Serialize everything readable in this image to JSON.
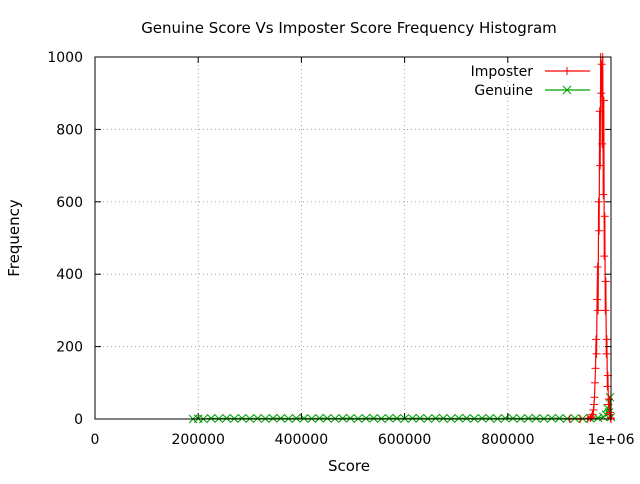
{
  "chart_data": {
    "type": "line",
    "title": "Genuine Score Vs Imposter Score Frequency Histogram",
    "xlabel": "Score",
    "ylabel": "Frequency",
    "xlim": [
      0,
      1000000
    ],
    "ylim": [
      0,
      1000
    ],
    "x_ticks": [
      0,
      200000,
      400000,
      600000,
      800000,
      1000000
    ],
    "x_tick_labels": [
      "0",
      "200000",
      "400000",
      "600000",
      "800000",
      "1e+06"
    ],
    "y_ticks": [
      0,
      200,
      400,
      600,
      800,
      1000
    ],
    "y_tick_labels": [
      "0",
      "200",
      "400",
      "600",
      "800",
      "1000"
    ],
    "grid": true,
    "legend_position": "top-right",
    "series": [
      {
        "name": "Imposter",
        "color": "#ff0000",
        "marker": "plus",
        "points": [
          [
            920000,
            0
          ],
          [
            940000,
            0
          ],
          [
            955000,
            1
          ],
          [
            960000,
            3
          ],
          [
            962000,
            6
          ],
          [
            964000,
            12
          ],
          [
            966000,
            25
          ],
          [
            967000,
            40
          ],
          [
            968000,
            60
          ],
          [
            969000,
            100
          ],
          [
            970000,
            140
          ],
          [
            971000,
            220
          ],
          [
            972000,
            180
          ],
          [
            973000,
            330
          ],
          [
            974000,
            420
          ],
          [
            975000,
            300
          ],
          [
            976000,
            600
          ],
          [
            977000,
            520
          ],
          [
            978000,
            850
          ],
          [
            979000,
            700
          ],
          [
            980000,
            1000
          ],
          [
            981000,
            900
          ],
          [
            982000,
            980
          ],
          [
            983000,
            760
          ],
          [
            984000,
            1000
          ],
          [
            985000,
            620
          ],
          [
            986000,
            880
          ],
          [
            987000,
            450
          ],
          [
            988000,
            560
          ],
          [
            989000,
            300
          ],
          [
            990000,
            380
          ],
          [
            991000,
            180
          ],
          [
            992000,
            220
          ],
          [
            993000,
            90
          ],
          [
            994000,
            120
          ],
          [
            995000,
            40
          ],
          [
            996000,
            55
          ],
          [
            997000,
            12
          ],
          [
            998000,
            18
          ],
          [
            999000,
            3
          ],
          [
            1000000,
            0
          ]
        ]
      },
      {
        "name": "Genuine",
        "color": "#00a000",
        "marker": "cross",
        "points": [
          [
            190000,
            0
          ],
          [
            200000,
            1
          ],
          [
            210000,
            0
          ],
          [
            225000,
            2
          ],
          [
            240000,
            1
          ],
          [
            255000,
            2
          ],
          [
            270000,
            1
          ],
          [
            285000,
            2
          ],
          [
            300000,
            1
          ],
          [
            315000,
            2
          ],
          [
            330000,
            1
          ],
          [
            345000,
            2
          ],
          [
            360000,
            2
          ],
          [
            375000,
            1
          ],
          [
            390000,
            2
          ],
          [
            405000,
            2
          ],
          [
            420000,
            1
          ],
          [
            435000,
            2
          ],
          [
            450000,
            2
          ],
          [
            465000,
            1
          ],
          [
            480000,
            2
          ],
          [
            495000,
            2
          ],
          [
            510000,
            1
          ],
          [
            525000,
            2
          ],
          [
            540000,
            2
          ],
          [
            555000,
            1
          ],
          [
            570000,
            2
          ],
          [
            585000,
            2
          ],
          [
            600000,
            1
          ],
          [
            615000,
            2
          ],
          [
            630000,
            2
          ],
          [
            645000,
            1
          ],
          [
            660000,
            2
          ],
          [
            675000,
            2
          ],
          [
            690000,
            1
          ],
          [
            705000,
            2
          ],
          [
            720000,
            2
          ],
          [
            735000,
            1
          ],
          [
            750000,
            2
          ],
          [
            765000,
            2
          ],
          [
            780000,
            1
          ],
          [
            795000,
            2
          ],
          [
            810000,
            2
          ],
          [
            825000,
            1
          ],
          [
            840000,
            2
          ],
          [
            855000,
            2
          ],
          [
            870000,
            1
          ],
          [
            885000,
            2
          ],
          [
            900000,
            2
          ],
          [
            915000,
            1
          ],
          [
            930000,
            2
          ],
          [
            945000,
            1
          ],
          [
            960000,
            2
          ],
          [
            975000,
            3
          ],
          [
            985000,
            6
          ],
          [
            990000,
            12
          ],
          [
            993000,
            30
          ],
          [
            996000,
            18
          ],
          [
            998000,
            60
          ],
          [
            1000000,
            5
          ]
        ]
      }
    ]
  }
}
